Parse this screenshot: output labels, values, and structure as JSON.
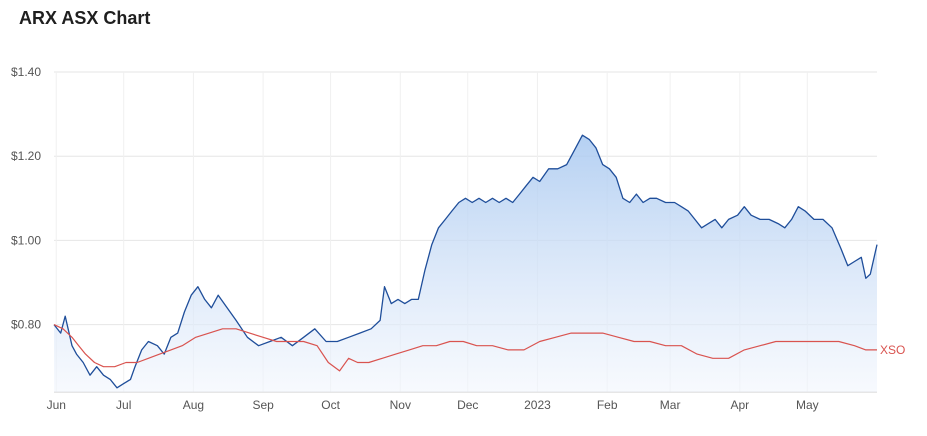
{
  "title": "ARX ASX Chart",
  "colors": {
    "primary": "#1f4e9a",
    "secondary": "#d9534f",
    "area_top": "#a8c8f0",
    "area_bottom": "#f2f6fd"
  },
  "chart_data": {
    "type": "area",
    "title": "ARX ASX Chart",
    "xlabel": "",
    "ylabel": "",
    "ylim": [
      0.64,
      1.4
    ],
    "y_ticks": [
      {
        "value": 0.8,
        "label": "$0.80"
      },
      {
        "value": 1.0,
        "label": "$1.00"
      },
      {
        "value": 1.2,
        "label": "$1.20"
      },
      {
        "value": 1.4,
        "label": "$1.40"
      }
    ],
    "x_range": [
      "2022-05-31",
      "2023-06-01"
    ],
    "x_ticks": [
      {
        "date": "2022-06-01",
        "label": "Jun"
      },
      {
        "date": "2022-07-01",
        "label": "Jul"
      },
      {
        "date": "2022-08-01",
        "label": "Aug"
      },
      {
        "date": "2022-09-01",
        "label": "Sep"
      },
      {
        "date": "2022-10-01",
        "label": "Oct"
      },
      {
        "date": "2022-11-01",
        "label": "Nov"
      },
      {
        "date": "2022-12-01",
        "label": "Dec"
      },
      {
        "date": "2023-01-01",
        "label": "2023"
      },
      {
        "date": "2023-02-01",
        "label": "Feb"
      },
      {
        "date": "2023-03-01",
        "label": "Mar"
      },
      {
        "date": "2023-04-01",
        "label": "Apr"
      },
      {
        "date": "2023-05-01",
        "label": "May"
      }
    ],
    "grid": true,
    "series": [
      {
        "kind": "area",
        "color": "#1f4e9a",
        "points": [
          [
            "2022-05-31",
            0.8
          ],
          [
            "2022-06-03",
            0.78
          ],
          [
            "2022-06-05",
            0.82
          ],
          [
            "2022-06-08",
            0.75
          ],
          [
            "2022-06-10",
            0.73
          ],
          [
            "2022-06-13",
            0.71
          ],
          [
            "2022-06-16",
            0.68
          ],
          [
            "2022-06-19",
            0.7
          ],
          [
            "2022-06-22",
            0.68
          ],
          [
            "2022-06-25",
            0.67
          ],
          [
            "2022-06-28",
            0.65
          ],
          [
            "2022-07-01",
            0.66
          ],
          [
            "2022-07-04",
            0.67
          ],
          [
            "2022-07-06",
            0.7
          ],
          [
            "2022-07-09",
            0.74
          ],
          [
            "2022-07-12",
            0.76
          ],
          [
            "2022-07-16",
            0.75
          ],
          [
            "2022-07-19",
            0.73
          ],
          [
            "2022-07-22",
            0.77
          ],
          [
            "2022-07-25",
            0.78
          ],
          [
            "2022-07-28",
            0.83
          ],
          [
            "2022-07-31",
            0.87
          ],
          [
            "2022-08-03",
            0.89
          ],
          [
            "2022-08-06",
            0.86
          ],
          [
            "2022-08-09",
            0.84
          ],
          [
            "2022-08-12",
            0.87
          ],
          [
            "2022-08-16",
            0.84
          ],
          [
            "2022-08-20",
            0.81
          ],
          [
            "2022-08-25",
            0.77
          ],
          [
            "2022-08-30",
            0.75
          ],
          [
            "2022-09-04",
            0.76
          ],
          [
            "2022-09-09",
            0.77
          ],
          [
            "2022-09-14",
            0.75
          ],
          [
            "2022-09-19",
            0.77
          ],
          [
            "2022-09-24",
            0.79
          ],
          [
            "2022-09-29",
            0.76
          ],
          [
            "2022-10-04",
            0.76
          ],
          [
            "2022-10-09",
            0.77
          ],
          [
            "2022-10-14",
            0.78
          ],
          [
            "2022-10-19",
            0.79
          ],
          [
            "2022-10-23",
            0.81
          ],
          [
            "2022-10-25",
            0.89
          ],
          [
            "2022-10-28",
            0.85
          ],
          [
            "2022-10-31",
            0.86
          ],
          [
            "2022-11-03",
            0.85
          ],
          [
            "2022-11-06",
            0.86
          ],
          [
            "2022-11-09",
            0.86
          ],
          [
            "2022-11-12",
            0.93
          ],
          [
            "2022-11-15",
            0.99
          ],
          [
            "2022-11-18",
            1.03
          ],
          [
            "2022-11-21",
            1.05
          ],
          [
            "2022-11-24",
            1.07
          ],
          [
            "2022-11-27",
            1.09
          ],
          [
            "2022-11-30",
            1.1
          ],
          [
            "2022-12-03",
            1.09
          ],
          [
            "2022-12-06",
            1.1
          ],
          [
            "2022-12-09",
            1.09
          ],
          [
            "2022-12-12",
            1.1
          ],
          [
            "2022-12-15",
            1.09
          ],
          [
            "2022-12-18",
            1.1
          ],
          [
            "2022-12-21",
            1.09
          ],
          [
            "2022-12-24",
            1.11
          ],
          [
            "2022-12-27",
            1.13
          ],
          [
            "2022-12-30",
            1.15
          ],
          [
            "2023-01-02",
            1.14
          ],
          [
            "2023-01-06",
            1.17
          ],
          [
            "2023-01-10",
            1.17
          ],
          [
            "2023-01-14",
            1.18
          ],
          [
            "2023-01-18",
            1.22
          ],
          [
            "2023-01-21",
            1.25
          ],
          [
            "2023-01-24",
            1.24
          ],
          [
            "2023-01-27",
            1.22
          ],
          [
            "2023-01-30",
            1.18
          ],
          [
            "2023-02-02",
            1.17
          ],
          [
            "2023-02-05",
            1.15
          ],
          [
            "2023-02-08",
            1.1
          ],
          [
            "2023-02-11",
            1.09
          ],
          [
            "2023-02-14",
            1.11
          ],
          [
            "2023-02-17",
            1.09
          ],
          [
            "2023-02-20",
            1.1
          ],
          [
            "2023-02-23",
            1.1
          ],
          [
            "2023-02-27",
            1.09
          ],
          [
            "2023-03-03",
            1.09
          ],
          [
            "2023-03-06",
            1.08
          ],
          [
            "2023-03-09",
            1.07
          ],
          [
            "2023-03-12",
            1.05
          ],
          [
            "2023-03-15",
            1.03
          ],
          [
            "2023-03-18",
            1.04
          ],
          [
            "2023-03-21",
            1.05
          ],
          [
            "2023-03-24",
            1.03
          ],
          [
            "2023-03-27",
            1.05
          ],
          [
            "2023-03-31",
            1.06
          ],
          [
            "2023-04-03",
            1.08
          ],
          [
            "2023-04-06",
            1.06
          ],
          [
            "2023-04-10",
            1.05
          ],
          [
            "2023-04-14",
            1.05
          ],
          [
            "2023-04-18",
            1.04
          ],
          [
            "2023-04-21",
            1.03
          ],
          [
            "2023-04-24",
            1.05
          ],
          [
            "2023-04-27",
            1.08
          ],
          [
            "2023-04-30",
            1.07
          ],
          [
            "2023-05-04",
            1.05
          ],
          [
            "2023-05-08",
            1.05
          ],
          [
            "2023-05-12",
            1.03
          ],
          [
            "2023-05-16",
            0.98
          ],
          [
            "2023-05-19",
            0.94
          ],
          [
            "2023-05-22",
            0.95
          ],
          [
            "2023-05-25",
            0.96
          ],
          [
            "2023-05-27",
            0.91
          ],
          [
            "2023-05-29",
            0.92
          ],
          [
            "2023-06-01",
            0.99
          ]
        ]
      },
      {
        "name": "XSO",
        "kind": "line",
        "color": "#d9534f",
        "points": [
          [
            "2022-05-31",
            0.8
          ],
          [
            "2022-06-04",
            0.79
          ],
          [
            "2022-06-08",
            0.77
          ],
          [
            "2022-06-11",
            0.75
          ],
          [
            "2022-06-14",
            0.73
          ],
          [
            "2022-06-18",
            0.71
          ],
          [
            "2022-06-22",
            0.7
          ],
          [
            "2022-06-27",
            0.7
          ],
          [
            "2022-07-02",
            0.71
          ],
          [
            "2022-07-07",
            0.71
          ],
          [
            "2022-07-12",
            0.72
          ],
          [
            "2022-07-17",
            0.73
          ],
          [
            "2022-07-22",
            0.74
          ],
          [
            "2022-07-27",
            0.75
          ],
          [
            "2022-08-02",
            0.77
          ],
          [
            "2022-08-08",
            0.78
          ],
          [
            "2022-08-14",
            0.79
          ],
          [
            "2022-08-20",
            0.79
          ],
          [
            "2022-08-26",
            0.78
          ],
          [
            "2022-09-01",
            0.77
          ],
          [
            "2022-09-07",
            0.76
          ],
          [
            "2022-09-13",
            0.76
          ],
          [
            "2022-09-19",
            0.76
          ],
          [
            "2022-09-25",
            0.75
          ],
          [
            "2022-09-30",
            0.71
          ],
          [
            "2022-10-05",
            0.69
          ],
          [
            "2022-10-09",
            0.72
          ],
          [
            "2022-10-13",
            0.71
          ],
          [
            "2022-10-18",
            0.71
          ],
          [
            "2022-10-24",
            0.72
          ],
          [
            "2022-10-30",
            0.73
          ],
          [
            "2022-11-05",
            0.74
          ],
          [
            "2022-11-11",
            0.75
          ],
          [
            "2022-11-17",
            0.75
          ],
          [
            "2022-11-23",
            0.76
          ],
          [
            "2022-11-29",
            0.76
          ],
          [
            "2022-12-05",
            0.75
          ],
          [
            "2022-12-12",
            0.75
          ],
          [
            "2022-12-19",
            0.74
          ],
          [
            "2022-12-26",
            0.74
          ],
          [
            "2023-01-02",
            0.76
          ],
          [
            "2023-01-09",
            0.77
          ],
          [
            "2023-01-16",
            0.78
          ],
          [
            "2023-01-23",
            0.78
          ],
          [
            "2023-01-30",
            0.78
          ],
          [
            "2023-02-06",
            0.77
          ],
          [
            "2023-02-13",
            0.76
          ],
          [
            "2023-02-20",
            0.76
          ],
          [
            "2023-02-27",
            0.75
          ],
          [
            "2023-03-06",
            0.75
          ],
          [
            "2023-03-13",
            0.73
          ],
          [
            "2023-03-20",
            0.72
          ],
          [
            "2023-03-27",
            0.72
          ],
          [
            "2023-04-03",
            0.74
          ],
          [
            "2023-04-10",
            0.75
          ],
          [
            "2023-04-17",
            0.76
          ],
          [
            "2023-04-24",
            0.76
          ],
          [
            "2023-05-01",
            0.76
          ],
          [
            "2023-05-08",
            0.76
          ],
          [
            "2023-05-15",
            0.76
          ],
          [
            "2023-05-22",
            0.75
          ],
          [
            "2023-05-27",
            0.74
          ],
          [
            "2023-06-01",
            0.74
          ]
        ]
      }
    ]
  }
}
